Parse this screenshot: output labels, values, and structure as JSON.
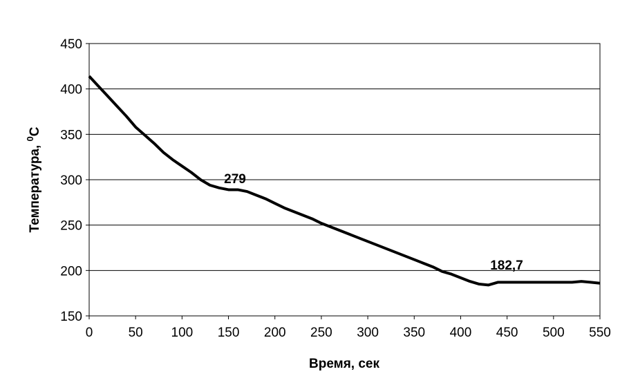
{
  "chart_data": {
    "type": "line",
    "xlabel": "Время, сек",
    "ylabel": {
      "text": "Температура, ",
      "sup": "0",
      "unit": "C"
    },
    "annotations": [
      "279",
      "182,7"
    ],
    "x": [
      0,
      10,
      20,
      30,
      40,
      50,
      60,
      70,
      80,
      90,
      100,
      110,
      120,
      130,
      140,
      150,
      160,
      170,
      180,
      190,
      200,
      210,
      220,
      230,
      240,
      250,
      260,
      270,
      280,
      290,
      300,
      310,
      320,
      330,
      340,
      350,
      360,
      370,
      380,
      390,
      400,
      410,
      420,
      430,
      440,
      450,
      460,
      470,
      480,
      490,
      500,
      510,
      520,
      530,
      540,
      550
    ],
    "series": [
      {
        "color": "#000000",
        "values": [
          414,
          403,
          392,
          381,
          370,
          358,
          349,
          340,
          330,
          322,
          315,
          308,
          300,
          294,
          291,
          289,
          289,
          287,
          283,
          279,
          274,
          269,
          265,
          261,
          257,
          252,
          248,
          244,
          240,
          236,
          232,
          228,
          224,
          220,
          216,
          212,
          208,
          204,
          199,
          196,
          192,
          188,
          185,
          184,
          187,
          187,
          187,
          187,
          187,
          187,
          187,
          187,
          187,
          188,
          187,
          186
        ]
      }
    ],
    "xlim": [
      0,
      550
    ],
    "xticks": [
      0,
      50,
      100,
      150,
      200,
      250,
      300,
      350,
      400,
      450,
      500,
      550
    ],
    "ylim": [
      150,
      450
    ],
    "yticks": [
      150,
      200,
      250,
      300,
      350,
      400,
      450
    ],
    "grid": true
  }
}
